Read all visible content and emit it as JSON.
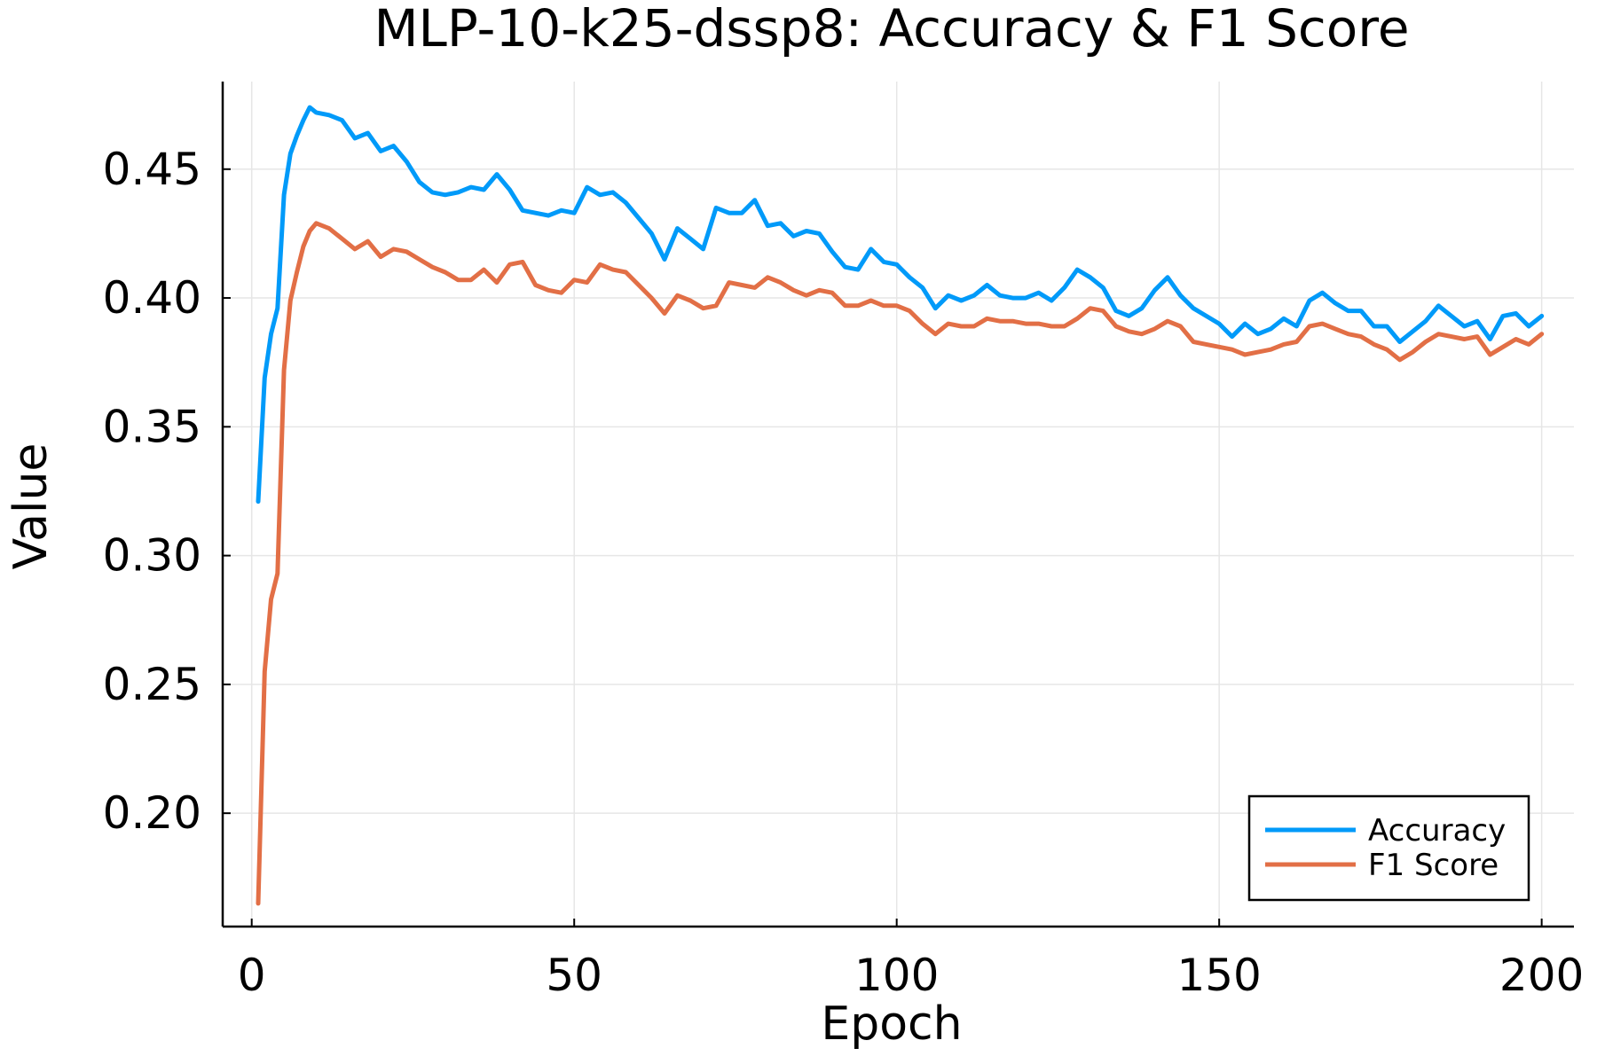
{
  "chart_data": {
    "type": "line",
    "title": "MLP-10-k25-dssp8: Accuracy & F1 Score",
    "xlabel": "Epoch",
    "ylabel": "Value",
    "xlim": [
      -4.5,
      205
    ],
    "ylim": [
      0.156,
      0.484
    ],
    "xticks": [
      0,
      50,
      100,
      150,
      200
    ],
    "yticks": [
      0.2,
      0.25,
      0.3,
      0.35,
      0.4,
      0.45
    ],
    "grid": true,
    "legend_position": "bottom-right",
    "series": [
      {
        "name": "Accuracy",
        "color": "#009af9",
        "x": [
          1,
          2,
          3,
          4,
          5,
          6,
          7,
          8,
          9,
          10,
          12,
          14,
          16,
          18,
          20,
          22,
          24,
          26,
          28,
          30,
          32,
          34,
          36,
          38,
          40,
          42,
          44,
          46,
          48,
          50,
          52,
          54,
          56,
          58,
          60,
          62,
          64,
          66,
          68,
          70,
          72,
          74,
          76,
          78,
          80,
          82,
          84,
          86,
          88,
          90,
          92,
          94,
          96,
          98,
          100,
          102,
          104,
          106,
          108,
          110,
          112,
          114,
          116,
          118,
          120,
          122,
          124,
          126,
          128,
          130,
          132,
          134,
          136,
          138,
          140,
          142,
          144,
          146,
          148,
          150,
          152,
          154,
          156,
          158,
          160,
          162,
          164,
          166,
          168,
          170,
          172,
          174,
          176,
          178,
          180,
          182,
          184,
          186,
          188,
          190,
          192,
          194,
          196,
          198,
          200
        ],
        "values": [
          0.321,
          0.369,
          0.386,
          0.396,
          0.44,
          0.456,
          0.463,
          0.469,
          0.474,
          0.472,
          0.471,
          0.469,
          0.462,
          0.464,
          0.457,
          0.459,
          0.453,
          0.445,
          0.441,
          0.44,
          0.441,
          0.443,
          0.442,
          0.448,
          0.442,
          0.434,
          0.433,
          0.432,
          0.434,
          0.433,
          0.443,
          0.44,
          0.441,
          0.437,
          0.431,
          0.425,
          0.415,
          0.427,
          0.423,
          0.419,
          0.435,
          0.433,
          0.433,
          0.438,
          0.428,
          0.429,
          0.424,
          0.426,
          0.425,
          0.418,
          0.412,
          0.411,
          0.419,
          0.414,
          0.413,
          0.408,
          0.404,
          0.396,
          0.401,
          0.399,
          0.401,
          0.405,
          0.401,
          0.4,
          0.4,
          0.402,
          0.399,
          0.404,
          0.411,
          0.408,
          0.404,
          0.395,
          0.393,
          0.396,
          0.403,
          0.408,
          0.401,
          0.396,
          0.393,
          0.39,
          0.385,
          0.39,
          0.386,
          0.388,
          0.392,
          0.389,
          0.399,
          0.402,
          0.398,
          0.395,
          0.395,
          0.389,
          0.389,
          0.383,
          0.387,
          0.391,
          0.397,
          0.393,
          0.389,
          0.391,
          0.384,
          0.393,
          0.394,
          0.389,
          0.393
        ]
      },
      {
        "name": "F1 Score",
        "color": "#e26f46",
        "x": [
          1,
          2,
          3,
          4,
          5,
          6,
          7,
          8,
          9,
          10,
          12,
          14,
          16,
          18,
          20,
          22,
          24,
          26,
          28,
          30,
          32,
          34,
          36,
          38,
          40,
          42,
          44,
          46,
          48,
          50,
          52,
          54,
          56,
          58,
          60,
          62,
          64,
          66,
          68,
          70,
          72,
          74,
          76,
          78,
          80,
          82,
          84,
          86,
          88,
          90,
          92,
          94,
          96,
          98,
          100,
          102,
          104,
          106,
          108,
          110,
          112,
          114,
          116,
          118,
          120,
          122,
          124,
          126,
          128,
          130,
          132,
          134,
          136,
          138,
          140,
          142,
          144,
          146,
          148,
          150,
          152,
          154,
          156,
          158,
          160,
          162,
          164,
          166,
          168,
          170,
          172,
          174,
          176,
          178,
          180,
          182,
          184,
          186,
          188,
          190,
          192,
          194,
          196,
          198,
          200
        ],
        "values": [
          0.165,
          0.255,
          0.283,
          0.293,
          0.372,
          0.399,
          0.41,
          0.42,
          0.426,
          0.429,
          0.427,
          0.423,
          0.419,
          0.422,
          0.416,
          0.419,
          0.418,
          0.415,
          0.412,
          0.41,
          0.407,
          0.407,
          0.411,
          0.406,
          0.413,
          0.414,
          0.405,
          0.403,
          0.402,
          0.407,
          0.406,
          0.413,
          0.411,
          0.41,
          0.405,
          0.4,
          0.394,
          0.401,
          0.399,
          0.396,
          0.397,
          0.406,
          0.405,
          0.404,
          0.408,
          0.406,
          0.403,
          0.401,
          0.403,
          0.402,
          0.397,
          0.397,
          0.399,
          0.397,
          0.397,
          0.395,
          0.39,
          0.386,
          0.39,
          0.389,
          0.389,
          0.392,
          0.391,
          0.391,
          0.39,
          0.39,
          0.389,
          0.389,
          0.392,
          0.396,
          0.395,
          0.389,
          0.387,
          0.386,
          0.388,
          0.391,
          0.389,
          0.383,
          0.382,
          0.381,
          0.38,
          0.378,
          0.379,
          0.38,
          0.382,
          0.383,
          0.389,
          0.39,
          0.388,
          0.386,
          0.385,
          0.382,
          0.38,
          0.376,
          0.379,
          0.383,
          0.386,
          0.385,
          0.384,
          0.385,
          0.378,
          0.381,
          0.384,
          0.382,
          0.386
        ]
      }
    ]
  }
}
